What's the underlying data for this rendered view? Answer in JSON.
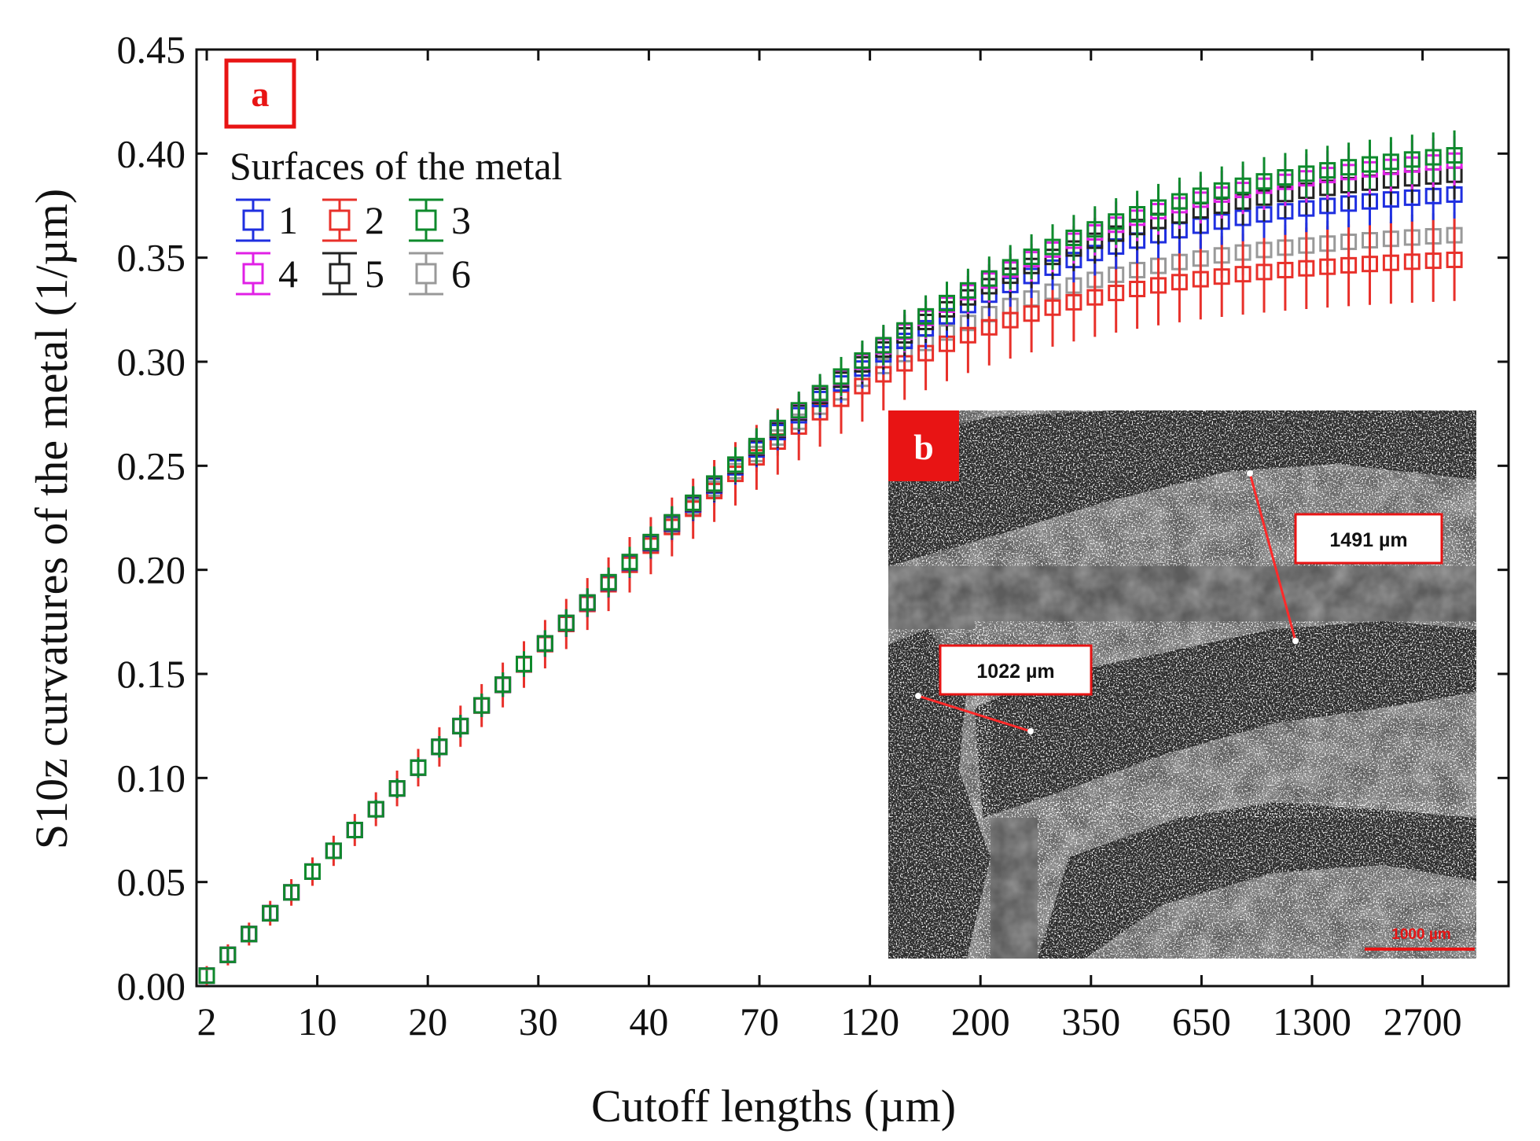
{
  "chart_data": {
    "type": "scatter",
    "style": "markers with error bars",
    "xlabel": "Cutoff lengths (µm)",
    "ylabel": "S10z curvatures of the metal (1/µm)",
    "ylim": [
      0,
      0.45
    ],
    "y_ticks": [
      "0.00",
      "0.05",
      "0.10",
      "0.15",
      "0.20",
      "0.25",
      "0.30",
      "0.35",
      "0.40",
      "0.45"
    ],
    "x_tick_labels": [
      "2",
      "10",
      "20",
      "30",
      "40",
      "70",
      "120",
      "200",
      "350",
      "650",
      "1300",
      "2700"
    ],
    "x_scale": "categorical (nonlinear cutoff lengths)",
    "panel_label": "a",
    "legend": {
      "title": "Surfaces of the metal",
      "placement": "top-left",
      "entries": [
        {
          "label": "1",
          "color": "#1f2fe0"
        },
        {
          "label": "2",
          "color": "#e8302a"
        },
        {
          "label": "3",
          "color": "#0e8a2c"
        },
        {
          "label": "4",
          "color": "#e020e6"
        },
        {
          "label": "5",
          "color": "#222222"
        },
        {
          "label": "6",
          "color": "#999999"
        }
      ]
    },
    "series_plateaus": [
      {
        "name": "1",
        "plateau": 0.389
      },
      {
        "name": "2",
        "plateau": 0.354
      },
      {
        "name": "3",
        "plateau": 0.411
      },
      {
        "name": "4",
        "plateau": 0.408
      },
      {
        "name": "5",
        "plateau": 0.4
      },
      {
        "name": "6",
        "plateau": 0.367
      }
    ],
    "inset": {
      "panel_label": "b",
      "description": "micrograph",
      "annotations": [
        "1491 µm",
        "1022 µm"
      ],
      "scale_bar": "1000 µm"
    }
  },
  "colors": {
    "accent_red": "#e81414",
    "axis": "#111111"
  }
}
